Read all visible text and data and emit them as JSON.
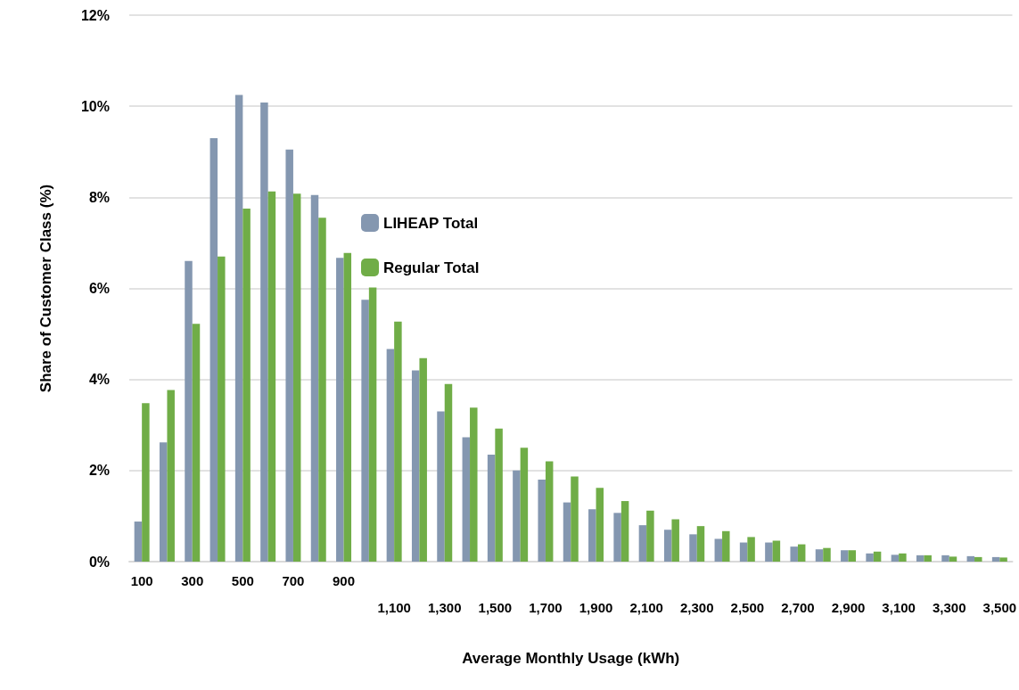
{
  "chart_data": {
    "type": "bar",
    "xlabel": "Average Monthly Usage (kWh)",
    "ylabel": "Share of Customer Class (%)",
    "categories": [
      "100",
      null,
      "300",
      null,
      "500",
      null,
      "700",
      null,
      "900",
      null,
      "1,100",
      null,
      "1,300",
      null,
      "1,500",
      null,
      "1,700",
      null,
      "1,900",
      null,
      "2,100",
      null,
      "2,300",
      null,
      "2,500",
      null,
      "2,700",
      null,
      "2,900",
      null,
      "3,100",
      null,
      "3,300",
      null,
      "3,500"
    ],
    "series": [
      {
        "name": "LIHEAP Total",
        "color": "#8497b0",
        "values": [
          0.88,
          2.62,
          6.6,
          9.3,
          10.25,
          10.08,
          9.05,
          8.05,
          6.67,
          5.75,
          4.67,
          4.2,
          3.3,
          2.73,
          2.35,
          2.0,
          1.8,
          1.3,
          1.15,
          1.07,
          0.8,
          0.7,
          0.6,
          0.5,
          0.42,
          0.42,
          0.33,
          0.27,
          0.25,
          0.18,
          0.15,
          0.14,
          0.14,
          0.12,
          0.1
        ]
      },
      {
        "name": "Regular Total",
        "color": "#70ad47",
        "values": [
          3.48,
          3.77,
          5.22,
          6.7,
          7.75,
          8.13,
          8.08,
          7.55,
          6.78,
          6.02,
          5.27,
          4.47,
          3.9,
          3.38,
          2.92,
          2.5,
          2.2,
          1.87,
          1.62,
          1.33,
          1.12,
          0.93,
          0.78,
          0.67,
          0.54,
          0.46,
          0.38,
          0.3,
          0.25,
          0.22,
          0.18,
          0.14,
          0.11,
          0.1,
          0.09
        ]
      }
    ],
    "ylim": [
      0,
      12
    ],
    "yticks": [
      {
        "value": 0,
        "label": "0%"
      },
      {
        "value": 2,
        "label": "2%"
      },
      {
        "value": 4,
        "label": "4%"
      },
      {
        "value": 6,
        "label": "6%"
      },
      {
        "value": 8,
        "label": "8%"
      },
      {
        "value": 10,
        "label": "10%"
      },
      {
        "value": 12,
        "label": "12%"
      }
    ],
    "grid": "y",
    "legend": "top"
  }
}
